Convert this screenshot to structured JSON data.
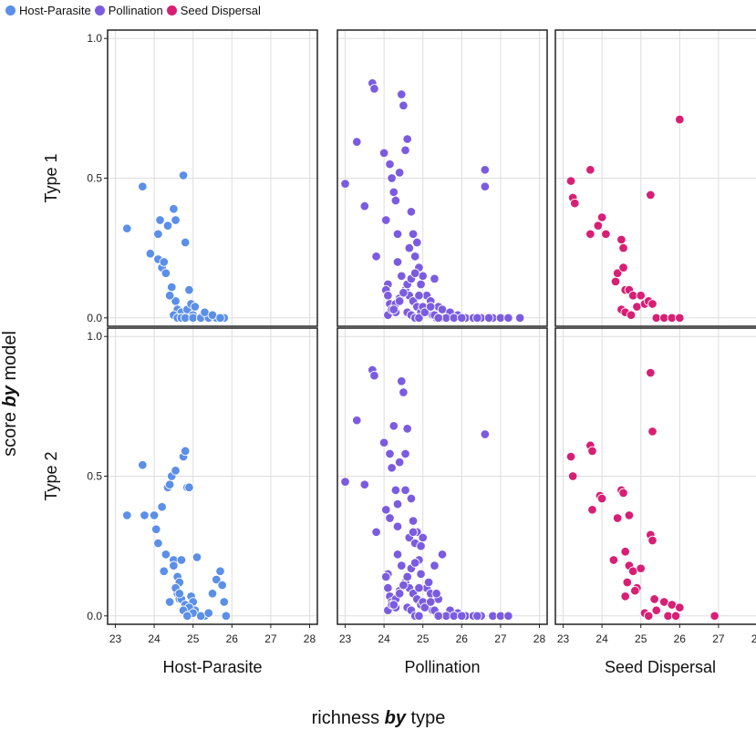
{
  "legend": {
    "items": [
      {
        "label": "Host-Parasite",
        "color": "#5B8FE8"
      },
      {
        "label": "Pollination",
        "color": "#7B5CE0"
      },
      {
        "label": "Seed Dispersal",
        "color": "#D81F75"
      }
    ]
  },
  "axes": {
    "xlabel_pre": "richness ",
    "xlabel_bold": "by",
    "xlabel_post": " type",
    "ylabel_pre": "score ",
    "ylabel_bold": "by",
    "ylabel_post": " model"
  },
  "chart_data": {
    "type": "scatter",
    "facet_columns": [
      "Host-Parasite",
      "Pollination",
      "Seed Dispersal"
    ],
    "facet_rows": [
      "Type 1",
      "Type 2"
    ],
    "xlim": [
      22.8,
      28.2
    ],
    "ylim": [
      -0.03,
      1.03
    ],
    "xticks": [
      23,
      24,
      25,
      26,
      27,
      28
    ],
    "yticks": [
      0.0,
      0.5,
      1.0
    ],
    "ytick_labels": [
      "0.0",
      "0.5",
      "1.0"
    ],
    "grid": true,
    "panels": [
      {
        "row": "Type 1",
        "column": "Host-Parasite",
        "x": [
          23.3,
          23.7,
          23.9,
          24.15,
          24.1,
          24.2,
          24.3,
          24.35,
          24.5,
          24.55,
          24.75,
          24.8,
          24.9,
          24.45,
          24.55,
          24.6,
          24.7,
          24.85,
          25.0,
          24.5,
          24.6,
          24.7,
          24.8,
          25.0,
          25.2,
          25.4,
          25.6,
          25.8,
          24.1,
          24.25,
          24.4,
          24.95,
          25.05,
          25.3,
          25.5,
          25.7
        ],
        "y": [
          0.32,
          0.47,
          0.23,
          0.35,
          0.21,
          0.18,
          0.16,
          0.33,
          0.39,
          0.35,
          0.51,
          0.27,
          0.1,
          0.11,
          0.06,
          0.03,
          0.02,
          0.03,
          0.01,
          0.01,
          0.0,
          0.0,
          0.0,
          0.0,
          0.0,
          0.0,
          0.0,
          0.0,
          0.3,
          0.2,
          0.08,
          0.05,
          0.04,
          0.02,
          0.01,
          0.0
        ]
      },
      {
        "row": "Type 1",
        "column": "Pollination",
        "x": [
          23.0,
          23.3,
          23.5,
          23.7,
          23.75,
          23.8,
          24.0,
          24.05,
          24.1,
          24.15,
          24.2,
          24.25,
          24.3,
          24.35,
          24.4,
          24.45,
          24.5,
          24.55,
          24.6,
          24.65,
          24.7,
          24.75,
          24.8,
          24.85,
          24.9,
          24.95,
          25.0,
          25.1,
          25.2,
          25.3,
          25.4,
          25.5,
          25.7,
          25.9,
          26.1,
          26.3,
          26.5,
          26.6,
          26.6,
          26.8,
          27.0,
          27.2,
          27.5,
          24.05,
          24.1,
          24.15,
          24.2,
          24.3,
          24.35,
          24.45,
          24.55,
          24.65,
          24.75,
          24.85,
          24.95,
          24.1,
          24.2,
          24.3,
          24.4,
          24.5,
          24.6,
          24.7,
          24.8,
          24.9,
          25.0,
          25.15,
          25.25,
          25.35,
          25.45,
          25.6,
          25.8,
          24.25,
          24.4,
          24.6,
          24.7,
          24.8,
          24.9,
          25.05,
          25.2,
          25.3,
          25.4,
          26.0,
          26.4,
          26.7
        ],
        "y": [
          0.48,
          0.63,
          0.4,
          0.84,
          0.82,
          0.22,
          0.59,
          0.35,
          0.12,
          0.55,
          0.5,
          0.45,
          0.42,
          0.3,
          0.52,
          0.8,
          0.76,
          0.6,
          0.64,
          0.25,
          0.38,
          0.3,
          0.22,
          0.27,
          0.18,
          0.12,
          0.15,
          0.08,
          0.06,
          0.14,
          0.04,
          0.03,
          0.02,
          0.01,
          0.0,
          0.0,
          0.0,
          0.47,
          0.53,
          0.0,
          0.0,
          0.0,
          0.0,
          0.1,
          0.08,
          0.05,
          0.03,
          0.02,
          0.2,
          0.15,
          0.1,
          0.08,
          0.06,
          0.04,
          0.02,
          0.01,
          0.03,
          0.05,
          0.07,
          0.09,
          0.12,
          0.14,
          0.16,
          0.08,
          0.04,
          0.02,
          0.01,
          0.0,
          0.0,
          0.0,
          0.0,
          0.03,
          0.06,
          0.02,
          0.01,
          0.0,
          0.0,
          0.02,
          0.04,
          0.01,
          0.0,
          0.0,
          0.0,
          0.0
        ]
      },
      {
        "row": "Type 1",
        "column": "Seed Dispersal",
        "x": [
          23.2,
          23.25,
          23.3,
          23.7,
          23.7,
          23.9,
          24.0,
          24.1,
          24.4,
          24.5,
          24.55,
          24.55,
          24.6,
          24.7,
          24.8,
          24.9,
          25.0,
          25.1,
          25.2,
          25.3,
          25.4,
          25.6,
          25.8,
          26.0,
          26.0,
          25.25,
          24.35,
          24.5,
          24.6,
          24.75
        ],
        "y": [
          0.49,
          0.43,
          0.41,
          0.53,
          0.3,
          0.33,
          0.36,
          0.3,
          0.16,
          0.28,
          0.25,
          0.18,
          0.1,
          0.1,
          0.08,
          0.04,
          0.08,
          0.05,
          0.06,
          0.05,
          0.0,
          0.0,
          0.0,
          0.0,
          0.71,
          0.44,
          0.13,
          0.03,
          0.02,
          0.01
        ]
      },
      {
        "row": "Type 2",
        "column": "Host-Parasite",
        "x": [
          23.3,
          23.7,
          23.75,
          24.0,
          24.05,
          24.1,
          24.2,
          24.25,
          24.3,
          24.35,
          24.4,
          24.45,
          24.5,
          24.55,
          24.6,
          24.65,
          24.7,
          24.75,
          24.8,
          24.85,
          24.9,
          24.95,
          25.0,
          25.05,
          25.1,
          25.3,
          25.5,
          25.6,
          25.7,
          25.75,
          25.8,
          25.85,
          24.4,
          24.5,
          24.6,
          24.65,
          24.7,
          24.8,
          24.9,
          25.0,
          25.2,
          25.4,
          24.55,
          24.65,
          24.75,
          24.85
        ],
        "y": [
          0.36,
          0.54,
          0.36,
          0.36,
          0.31,
          0.26,
          0.39,
          0.16,
          0.22,
          0.46,
          0.47,
          0.5,
          0.2,
          0.52,
          0.08,
          0.06,
          0.2,
          0.57,
          0.59,
          0.46,
          0.46,
          0.07,
          0.05,
          0.02,
          0.21,
          0.0,
          0.08,
          0.13,
          0.16,
          0.11,
          0.05,
          0.0,
          0.05,
          0.18,
          0.14,
          0.12,
          0.06,
          0.04,
          0.03,
          0.01,
          0.0,
          0.01,
          0.1,
          0.08,
          0.02,
          0.0
        ]
      },
      {
        "row": "Type 2",
        "column": "Pollination",
        "x": [
          23.0,
          23.3,
          23.5,
          23.7,
          23.75,
          23.8,
          24.0,
          24.05,
          24.1,
          24.15,
          24.2,
          24.25,
          24.3,
          24.35,
          24.4,
          24.45,
          24.5,
          24.55,
          24.6,
          24.65,
          24.7,
          24.75,
          24.8,
          24.85,
          24.9,
          24.95,
          25.0,
          25.1,
          25.2,
          25.3,
          25.4,
          25.5,
          25.7,
          25.9,
          26.1,
          26.3,
          26.5,
          26.6,
          26.8,
          27.0,
          27.2,
          24.05,
          24.1,
          24.15,
          24.2,
          24.3,
          24.35,
          24.45,
          24.55,
          24.65,
          24.75,
          24.85,
          24.95,
          24.1,
          24.2,
          24.3,
          24.4,
          24.5,
          24.6,
          24.7,
          24.8,
          24.9,
          25.0,
          25.15,
          25.25,
          25.35,
          25.45,
          25.6,
          25.8,
          24.25,
          24.4,
          24.6,
          24.7,
          24.8,
          24.9,
          25.05,
          25.2,
          25.3,
          25.4,
          26.0,
          26.4,
          24.15,
          24.35,
          24.55,
          24.75,
          24.95,
          25.15,
          25.35
        ],
        "y": [
          0.48,
          0.7,
          0.47,
          0.88,
          0.86,
          0.3,
          0.62,
          0.38,
          0.15,
          0.58,
          0.53,
          0.68,
          0.45,
          0.32,
          0.55,
          0.84,
          0.8,
          0.58,
          0.67,
          0.28,
          0.42,
          0.34,
          0.26,
          0.3,
          0.2,
          0.15,
          0.28,
          0.1,
          0.08,
          0.18,
          0.06,
          0.22,
          0.02,
          0.01,
          0.0,
          0.0,
          0.0,
          0.65,
          0.0,
          0.0,
          0.0,
          0.14,
          0.1,
          0.07,
          0.05,
          0.03,
          0.22,
          0.18,
          0.12,
          0.1,
          0.08,
          0.06,
          0.04,
          0.02,
          0.04,
          0.06,
          0.09,
          0.11,
          0.14,
          0.17,
          0.19,
          0.1,
          0.05,
          0.03,
          0.02,
          0.01,
          0.0,
          0.0,
          0.0,
          0.04,
          0.08,
          0.03,
          0.02,
          0.0,
          0.0,
          0.03,
          0.05,
          0.02,
          0.0,
          0.0,
          0.0,
          0.35,
          0.4,
          0.45,
          0.3,
          0.25,
          0.12,
          0.08
        ]
      },
      {
        "row": "Type 2",
        "column": "Seed Dispersal",
        "x": [
          23.2,
          23.25,
          23.7,
          23.75,
          23.75,
          23.95,
          24.0,
          24.3,
          24.4,
          24.5,
          24.55,
          24.6,
          24.6,
          24.7,
          24.7,
          24.8,
          24.9,
          25.0,
          25.1,
          25.2,
          25.25,
          25.3,
          25.35,
          25.4,
          25.6,
          25.7,
          25.8,
          25.9,
          26.0,
          26.9,
          25.25,
          25.3,
          24.65,
          24.85
        ],
        "y": [
          0.57,
          0.5,
          0.61,
          0.59,
          0.38,
          0.43,
          0.42,
          0.2,
          0.35,
          0.45,
          0.44,
          0.23,
          0.07,
          0.36,
          0.18,
          0.16,
          0.1,
          0.17,
          0.01,
          0.0,
          0.29,
          0.27,
          0.06,
          0.02,
          0.05,
          0.0,
          0.04,
          0.0,
          0.03,
          0.0,
          0.87,
          0.66,
          0.12,
          0.09
        ]
      }
    ]
  }
}
